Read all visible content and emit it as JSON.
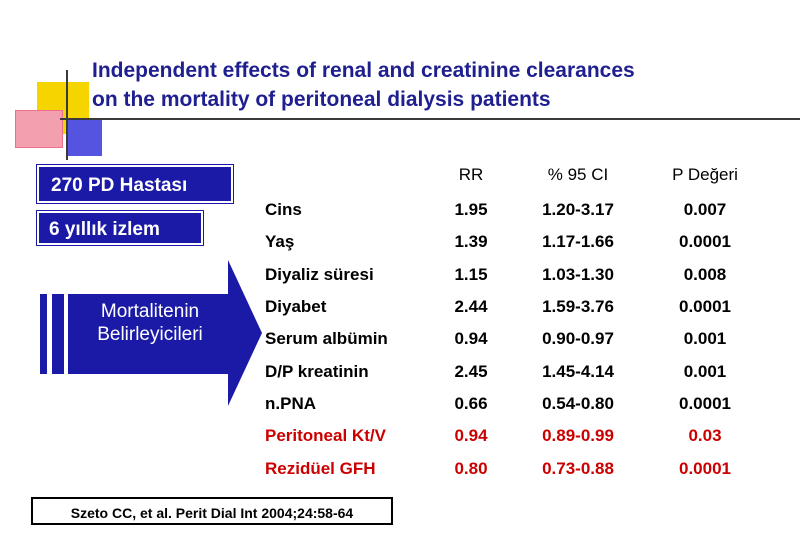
{
  "title": {
    "line1": "Independent effects of renal and creatinine clearances",
    "line2": "on the mortality of peritoneal dialysis patients"
  },
  "left_panel": {
    "patients_label": "270 PD Hastası",
    "follow_up_label": "6 yıllık izlem",
    "arrow_line1": "Mortalitenin",
    "arrow_line2": "Belirleyicileri"
  },
  "table": {
    "headers": [
      "",
      "RR",
      "% 95 CI",
      "P Değeri"
    ],
    "rows": [
      {
        "factor": "Cins",
        "rr": "1.95",
        "ci": "1.20-3.17",
        "p": "0.007",
        "highlight": false
      },
      {
        "factor": "Yaş",
        "rr": "1.39",
        "ci": "1.17-1.66",
        "p": "0.0001",
        "highlight": false
      },
      {
        "factor": "Diyaliz süresi",
        "rr": "1.15",
        "ci": "1.03-1.30",
        "p": "0.008",
        "highlight": false
      },
      {
        "factor": "Diyabet",
        "rr": "2.44",
        "ci": "1.59-3.76",
        "p": "0.0001",
        "highlight": false
      },
      {
        "factor": "Serum albümin",
        "rr": "0.94",
        "ci": "0.90-0.97",
        "p": "0.001",
        "highlight": false
      },
      {
        "factor": "D/P kreatinin",
        "rr": "2.45",
        "ci": "1.45-4.14",
        "p": "0.001",
        "highlight": false
      },
      {
        "factor": "n.PNA",
        "rr": "0.66",
        "ci": "0.54-0.80",
        "p": "0.0001",
        "highlight": false
      },
      {
        "factor": "Peritoneal Kt/V",
        "rr": "0.94",
        "ci": "0.89-0.99",
        "p": "0.03",
        "highlight": true
      },
      {
        "factor": "Rezidüel GFH",
        "rr": "0.80",
        "ci": "0.73-0.88",
        "p": "0.0001",
        "highlight": true
      }
    ]
  },
  "citation": "Szeto CC, et al. Perit Dial Int 2004;24:58-64",
  "colors": {
    "title": "#1f1f8f",
    "box": "#1a1aa6",
    "highlight_text": "#cc0000",
    "deco_yellow": "#f5d400",
    "deco_red": "#f0506e",
    "deco_blue": "#2b2bd0"
  }
}
